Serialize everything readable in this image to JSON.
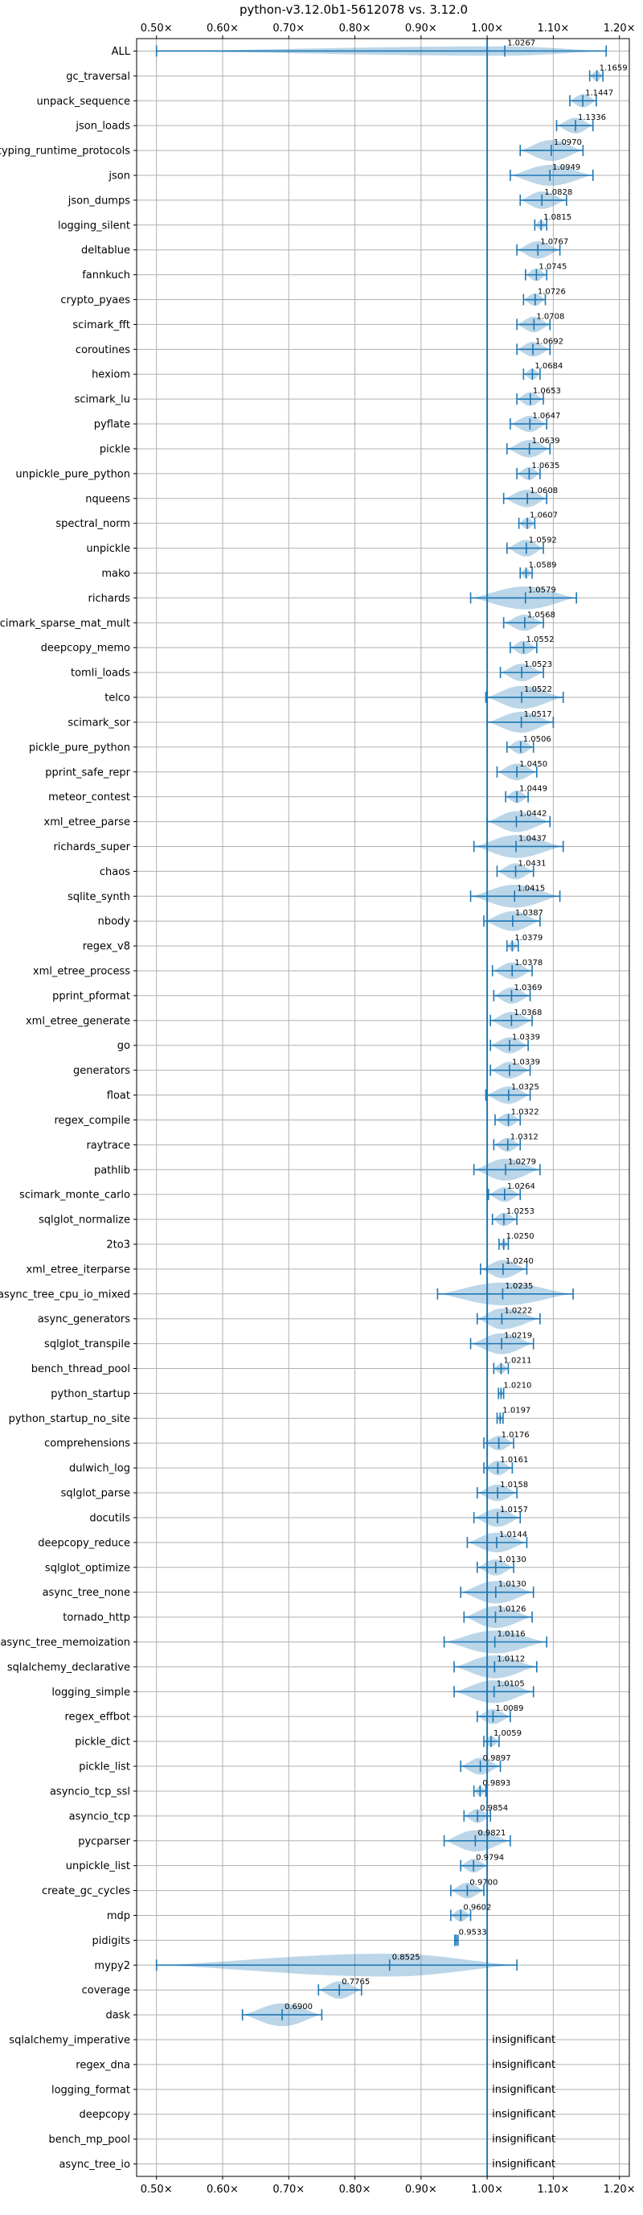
{
  "chart_data": {
    "type": "violin",
    "title": "python-v3.12.0b1-5612078 vs. 3.12.0",
    "xlabel": "",
    "ylabel": "",
    "x_tick_labels": [
      "0.50×",
      "0.60×",
      "0.70×",
      "0.80×",
      "0.90×",
      "1.00×",
      "1.10×",
      "1.20×"
    ],
    "x_ticks": [
      0.5,
      0.6,
      0.7,
      0.8,
      0.9,
      1.0,
      1.1,
      1.2
    ],
    "xlim": [
      0.47,
      1.215
    ],
    "reference_line": 1.0,
    "grid": true,
    "insignificant_label": "insignificant",
    "benchmarks": [
      {
        "name": "ALL",
        "mean": "1.0267",
        "v": 1.0267,
        "lo": 0.5,
        "hi": 1.18,
        "w": 0.01
      },
      {
        "name": "gc_traversal",
        "mean": "1.1659",
        "v": 1.1659,
        "lo": 1.155,
        "hi": 1.175,
        "w": 0.012
      },
      {
        "name": "unpack_sequence",
        "mean": "1.1447",
        "v": 1.1447,
        "lo": 1.125,
        "hi": 1.165,
        "w": 0.02
      },
      {
        "name": "json_loads",
        "mean": "1.1336",
        "v": 1.1336,
        "lo": 1.105,
        "hi": 1.16,
        "w": 0.028
      },
      {
        "name": "typing_runtime_protocols",
        "mean": "1.0970",
        "v": 1.097,
        "lo": 1.05,
        "hi": 1.145,
        "w": 0.05
      },
      {
        "name": "json",
        "mean": "1.0949",
        "v": 1.0949,
        "lo": 1.035,
        "hi": 1.16,
        "w": 0.05
      },
      {
        "name": "json_dumps",
        "mean": "1.0828",
        "v": 1.0828,
        "lo": 1.05,
        "hi": 1.12,
        "w": 0.035
      },
      {
        "name": "logging_silent",
        "mean": "1.0815",
        "v": 1.0815,
        "lo": 1.072,
        "hi": 1.09,
        "w": 0.01
      },
      {
        "name": "deltablue",
        "mean": "1.0767",
        "v": 1.0767,
        "lo": 1.045,
        "hi": 1.11,
        "w": 0.035
      },
      {
        "name": "fannkuch",
        "mean": "1.0745",
        "v": 1.0745,
        "lo": 1.058,
        "hi": 1.09,
        "w": 0.018
      },
      {
        "name": "crypto_pyaes",
        "mean": "1.0726",
        "v": 1.0726,
        "lo": 1.055,
        "hi": 1.088,
        "w": 0.018
      },
      {
        "name": "scimark_fft",
        "mean": "1.0708",
        "v": 1.0708,
        "lo": 1.045,
        "hi": 1.095,
        "w": 0.028
      },
      {
        "name": "coroutines",
        "mean": "1.0692",
        "v": 1.0692,
        "lo": 1.045,
        "hi": 1.095,
        "w": 0.025
      },
      {
        "name": "hexiom",
        "mean": "1.0684",
        "v": 1.0684,
        "lo": 1.055,
        "hi": 1.08,
        "w": 0.014
      },
      {
        "name": "scimark_lu",
        "mean": "1.0653",
        "v": 1.0653,
        "lo": 1.045,
        "hi": 1.085,
        "w": 0.022
      },
      {
        "name": "pyflate",
        "mean": "1.0647",
        "v": 1.0647,
        "lo": 1.035,
        "hi": 1.09,
        "w": 0.03
      },
      {
        "name": "pickle",
        "mean": "1.0639",
        "v": 1.0639,
        "lo": 1.03,
        "hi": 1.095,
        "w": 0.035
      },
      {
        "name": "unpickle_pure_python",
        "mean": "1.0635",
        "v": 1.0635,
        "lo": 1.045,
        "hi": 1.08,
        "w": 0.02
      },
      {
        "name": "nqueens",
        "mean": "1.0608",
        "v": 1.0608,
        "lo": 1.025,
        "hi": 1.09,
        "w": 0.035
      },
      {
        "name": "spectral_norm",
        "mean": "1.0607",
        "v": 1.0607,
        "lo": 1.048,
        "hi": 1.072,
        "w": 0.014
      },
      {
        "name": "unpickle",
        "mean": "1.0592",
        "v": 1.0592,
        "lo": 1.03,
        "hi": 1.085,
        "w": 0.032
      },
      {
        "name": "mako",
        "mean": "1.0589",
        "v": 1.0589,
        "lo": 1.05,
        "hi": 1.068,
        "w": 0.01
      },
      {
        "name": "richards",
        "mean": "1.0579",
        "v": 1.0579,
        "lo": 0.975,
        "hi": 1.135,
        "w": 0.08
      },
      {
        "name": "scimark_sparse_mat_mult",
        "mean": "1.0568",
        "v": 1.0568,
        "lo": 1.025,
        "hi": 1.085,
        "w": 0.03
      },
      {
        "name": "deepcopy_memo",
        "mean": "1.0552",
        "v": 1.0552,
        "lo": 1.035,
        "hi": 1.075,
        "w": 0.022
      },
      {
        "name": "tomli_loads",
        "mean": "1.0523",
        "v": 1.0523,
        "lo": 1.02,
        "hi": 1.085,
        "w": 0.035
      },
      {
        "name": "telco",
        "mean": "1.0522",
        "v": 1.0522,
        "lo": 0.998,
        "hi": 1.115,
        "w": 0.06
      },
      {
        "name": "scimark_sor",
        "mean": "1.0517",
        "v": 1.0517,
        "lo": 1.0,
        "hi": 1.1,
        "w": 0.05
      },
      {
        "name": "pickle_pure_python",
        "mean": "1.0506",
        "v": 1.0506,
        "lo": 1.03,
        "hi": 1.07,
        "w": 0.022
      },
      {
        "name": "pprint_safe_repr",
        "mean": "1.0450",
        "v": 1.045,
        "lo": 1.015,
        "hi": 1.075,
        "w": 0.032
      },
      {
        "name": "meteor_contest",
        "mean": "1.0449",
        "v": 1.0449,
        "lo": 1.028,
        "hi": 1.062,
        "w": 0.018
      },
      {
        "name": "xml_etree_parse",
        "mean": "1.0442",
        "v": 1.0442,
        "lo": 1.0,
        "hi": 1.095,
        "w": 0.05
      },
      {
        "name": "richards_super",
        "mean": "1.0437",
        "v": 1.0437,
        "lo": 0.98,
        "hi": 1.115,
        "w": 0.07
      },
      {
        "name": "chaos",
        "mean": "1.0431",
        "v": 1.0431,
        "lo": 1.015,
        "hi": 1.07,
        "w": 0.03
      },
      {
        "name": "sqlite_synth",
        "mean": "1.0415",
        "v": 1.0415,
        "lo": 0.975,
        "hi": 1.11,
        "w": 0.07
      },
      {
        "name": "nbody",
        "mean": "1.0387",
        "v": 1.0387,
        "lo": 0.995,
        "hi": 1.08,
        "w": 0.045
      },
      {
        "name": "regex_v8",
        "mean": "1.0379",
        "v": 1.0379,
        "lo": 1.03,
        "hi": 1.047,
        "w": 0.01
      },
      {
        "name": "xml_etree_process",
        "mean": "1.0378",
        "v": 1.0378,
        "lo": 1.008,
        "hi": 1.068,
        "w": 0.032
      },
      {
        "name": "pprint_pformat",
        "mean": "1.0369",
        "v": 1.0369,
        "lo": 1.01,
        "hi": 1.065,
        "w": 0.03
      },
      {
        "name": "xml_etree_generate",
        "mean": "1.0368",
        "v": 1.0368,
        "lo": 1.005,
        "hi": 1.068,
        "w": 0.034
      },
      {
        "name": "go",
        "mean": "1.0339",
        "v": 1.0339,
        "lo": 1.005,
        "hi": 1.062,
        "w": 0.03
      },
      {
        "name": "generators",
        "mean": "1.0339",
        "v": 1.0339,
        "lo": 1.005,
        "hi": 1.065,
        "w": 0.032
      },
      {
        "name": "float",
        "mean": "1.0325",
        "v": 1.0325,
        "lo": 0.998,
        "hi": 1.065,
        "w": 0.035
      },
      {
        "name": "regex_compile",
        "mean": "1.0322",
        "v": 1.0322,
        "lo": 1.012,
        "hi": 1.05,
        "w": 0.02
      },
      {
        "name": "raytrace",
        "mean": "1.0312",
        "v": 1.0312,
        "lo": 1.01,
        "hi": 1.05,
        "w": 0.022
      },
      {
        "name": "pathlib",
        "mean": "1.0279",
        "v": 1.0279,
        "lo": 0.98,
        "hi": 1.08,
        "w": 0.055
      },
      {
        "name": "scimark_monte_carlo",
        "mean": "1.0264",
        "v": 1.0264,
        "lo": 1.002,
        "hi": 1.05,
        "w": 0.025
      },
      {
        "name": "sqlglot_normalize",
        "mean": "1.0253",
        "v": 1.0253,
        "lo": 1.008,
        "hi": 1.045,
        "w": 0.02
      },
      {
        "name": "2to3",
        "mean": "1.0250",
        "v": 1.025,
        "lo": 1.018,
        "hi": 1.032,
        "w": 0.008
      },
      {
        "name": "xml_etree_iterparse",
        "mean": "1.0240",
        "v": 1.024,
        "lo": 0.99,
        "hi": 1.06,
        "w": 0.038
      },
      {
        "name": "async_tree_cpu_io_mixed",
        "mean": "1.0235",
        "v": 1.0235,
        "lo": 0.925,
        "hi": 1.13,
        "w": 0.1
      },
      {
        "name": "async_generators",
        "mean": "1.0222",
        "v": 1.0222,
        "lo": 0.985,
        "hi": 1.08,
        "w": 0.05
      },
      {
        "name": "sqlglot_transpile",
        "mean": "1.0219",
        "v": 1.0219,
        "lo": 0.975,
        "hi": 1.07,
        "w": 0.05
      },
      {
        "name": "bench_thread_pool",
        "mean": "1.0211",
        "v": 1.0211,
        "lo": 1.01,
        "hi": 1.032,
        "w": 0.012
      },
      {
        "name": "python_startup",
        "mean": "1.0210",
        "v": 1.021,
        "lo": 1.017,
        "hi": 1.025,
        "w": 0.006
      },
      {
        "name": "python_startup_no_site",
        "mean": "1.0197",
        "v": 1.0197,
        "lo": 1.015,
        "hi": 1.024,
        "w": 0.006
      },
      {
        "name": "comprehensions",
        "mean": "1.0176",
        "v": 1.0176,
        "lo": 0.995,
        "hi": 1.04,
        "w": 0.025
      },
      {
        "name": "dulwich_log",
        "mean": "1.0161",
        "v": 1.0161,
        "lo": 0.995,
        "hi": 1.038,
        "w": 0.025
      },
      {
        "name": "sqlglot_parse",
        "mean": "1.0158",
        "v": 1.0158,
        "lo": 0.985,
        "hi": 1.045,
        "w": 0.032
      },
      {
        "name": "docutils",
        "mean": "1.0157",
        "v": 1.0157,
        "lo": 0.98,
        "hi": 1.05,
        "w": 0.038
      },
      {
        "name": "deepcopy_reduce",
        "mean": "1.0144",
        "v": 1.0144,
        "lo": 0.97,
        "hi": 1.06,
        "w": 0.045
      },
      {
        "name": "sqlglot_optimize",
        "mean": "1.0130",
        "v": 1.013,
        "lo": 0.985,
        "hi": 1.04,
        "w": 0.03
      },
      {
        "name": "async_tree_none",
        "mean": "1.0130",
        "v": 1.013,
        "lo": 0.96,
        "hi": 1.07,
        "w": 0.058
      },
      {
        "name": "tornado_http",
        "mean": "1.0126",
        "v": 1.0126,
        "lo": 0.965,
        "hi": 1.068,
        "w": 0.055
      },
      {
        "name": "async_tree_memoization",
        "mean": "1.0116",
        "v": 1.0116,
        "lo": 0.935,
        "hi": 1.09,
        "w": 0.08
      },
      {
        "name": "sqlalchemy_declarative",
        "mean": "1.0112",
        "v": 1.0112,
        "lo": 0.95,
        "hi": 1.075,
        "w": 0.065
      },
      {
        "name": "logging_simple",
        "mean": "1.0105",
        "v": 1.0105,
        "lo": 0.95,
        "hi": 1.07,
        "w": 0.062
      },
      {
        "name": "regex_effbot",
        "mean": "1.0089",
        "v": 1.0089,
        "lo": 0.985,
        "hi": 1.035,
        "w": 0.026
      },
      {
        "name": "pickle_dict",
        "mean": "1.0059",
        "v": 1.0059,
        "lo": 0.995,
        "hi": 1.018,
        "w": 0.013
      },
      {
        "name": "pickle_list",
        "mean": "0.9897",
        "v": 0.9897,
        "lo": 0.96,
        "hi": 1.02,
        "w": 0.032
      },
      {
        "name": "asyncio_tcp_ssl",
        "mean": "0.9893",
        "v": 0.9893,
        "lo": 0.98,
        "hi": 0.998,
        "w": 0.01
      },
      {
        "name": "asyncio_tcp",
        "mean": "0.9854",
        "v": 0.9854,
        "lo": 0.965,
        "hi": 1.005,
        "w": 0.022
      },
      {
        "name": "pycparser",
        "mean": "0.9821",
        "v": 0.9821,
        "lo": 0.935,
        "hi": 1.035,
        "w": 0.052
      },
      {
        "name": "unpickle_list",
        "mean": "0.9794",
        "v": 0.9794,
        "lo": 0.96,
        "hi": 1.0,
        "w": 0.022
      },
      {
        "name": "create_gc_cycles",
        "mean": "0.9700",
        "v": 0.97,
        "lo": 0.945,
        "hi": 0.995,
        "w": 0.028
      },
      {
        "name": "mdp",
        "mean": "0.9602",
        "v": 0.9602,
        "lo": 0.945,
        "hi": 0.975,
        "w": 0.018
      },
      {
        "name": "pidigits",
        "mean": "0.9533",
        "v": 0.9533,
        "lo": 0.951,
        "hi": 0.956,
        "w": 0.004
      },
      {
        "name": "mypy2",
        "mean": "0.8525",
        "v": 0.8525,
        "lo": 0.5,
        "hi": 1.045,
        "w": 0.3
      },
      {
        "name": "coverage",
        "mean": "0.7765",
        "v": 0.7765,
        "lo": 0.745,
        "hi": 0.81,
        "w": 0.035
      },
      {
        "name": "dask",
        "mean": "0.6900",
        "v": 0.69,
        "lo": 0.63,
        "hi": 0.75,
        "w": 0.065
      },
      {
        "name": "sqlalchemy_imperative",
        "mean": "",
        "insignificant": true
      },
      {
        "name": "regex_dna",
        "mean": "",
        "insignificant": true
      },
      {
        "name": "logging_format",
        "mean": "",
        "insignificant": true
      },
      {
        "name": "deepcopy",
        "mean": "",
        "insignificant": true
      },
      {
        "name": "bench_mp_pool",
        "mean": "",
        "insignificant": true
      },
      {
        "name": "async_tree_io",
        "mean": "",
        "insignificant": true
      }
    ]
  }
}
